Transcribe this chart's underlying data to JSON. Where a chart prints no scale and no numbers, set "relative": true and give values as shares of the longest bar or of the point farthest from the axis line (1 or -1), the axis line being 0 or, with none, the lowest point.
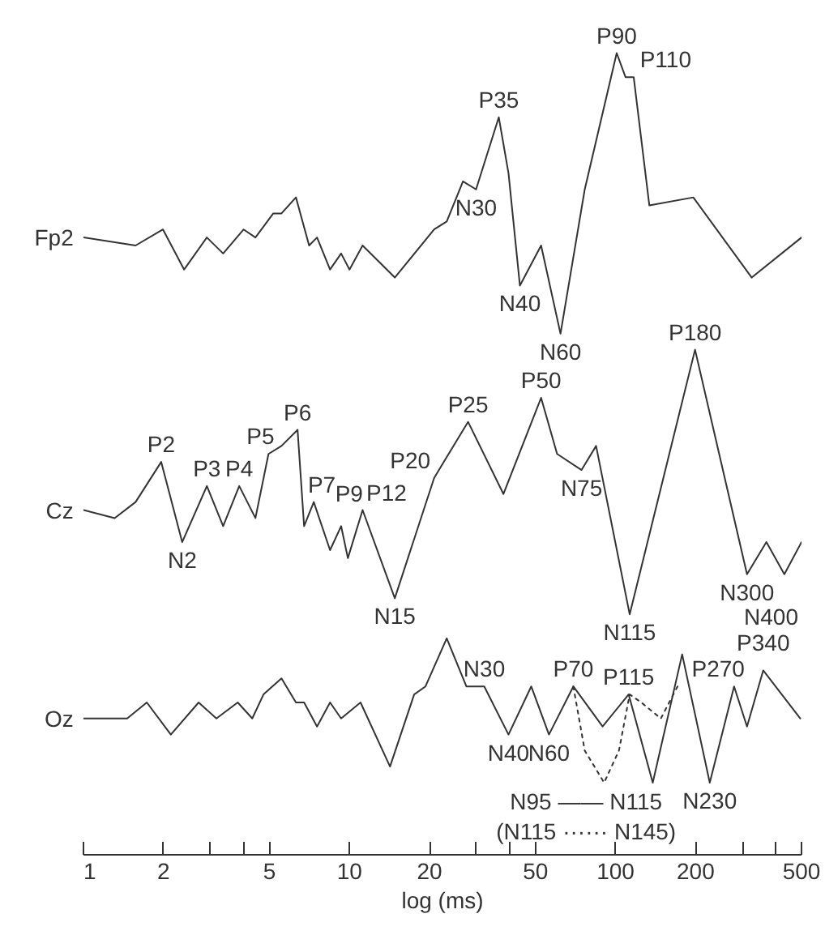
{
  "chart_data": {
    "type": "line",
    "relative": true,
    "log": "x",
    "grid": false,
    "tick_labels": "x",
    "xlabel": "log (ms)",
    "xlim": [
      1,
      500
    ],
    "xticks": [
      1,
      2,
      {
        "value": 3,
        "label": null
      },
      {
        "value": 4,
        "label": null
      },
      5,
      10,
      20,
      {
        "value": 30,
        "label": null
      },
      {
        "value": 40,
        "label": null
      },
      50,
      100,
      200,
      {
        "value": 300,
        "label": null
      },
      {
        "value": 400,
        "label": null
      },
      500
    ],
    "series": [
      {
        "name": "Fp2",
        "color": "#333333",
        "line_style": "solid",
        "x": [
          1,
          1.57,
          1.99,
          2.39,
          2.91,
          3.35,
          4.0,
          4.43,
          5.17,
          5.55,
          6.29,
          7.05,
          7.55,
          8.45,
          9.3,
          10,
          11.2,
          14.8,
          20.8,
          23.2,
          26.7,
          29.9,
          36.4,
          39.6,
          43.7,
          52.5,
          62.1,
          76.6,
          101,
          109,
          117,
          134,
          196,
          325,
          500
        ],
        "values": [
          0.77,
          0.76,
          0.78,
          0.73,
          0.77,
          0.75,
          0.78,
          0.77,
          0.8,
          0.8,
          0.82,
          0.76,
          0.77,
          0.73,
          0.75,
          0.73,
          0.76,
          0.72,
          0.78,
          0.79,
          0.84,
          0.83,
          0.92,
          0.85,
          0.71,
          0.76,
          0.65,
          0.83,
          1.0,
          0.97,
          0.97,
          0.81,
          0.82,
          0.72,
          0.77
        ]
      },
      {
        "name": "Cz",
        "color": "#333333",
        "line_style": "solid",
        "x": [
          1,
          1.31,
          1.57,
          1.96,
          2.35,
          2.91,
          3.35,
          3.85,
          4.43,
          4.96,
          5.55,
          6.38,
          6.75,
          7.34,
          8.45,
          9.3,
          9.86,
          11.2,
          14.8,
          20.8,
          22.6,
          27.9,
          37.9,
          52.5,
          60.3,
          74.5,
          84.5,
          113,
          199,
          312,
          369,
          431,
          500
        ],
        "values": [
          0.43,
          0.42,
          0.44,
          0.49,
          0.39,
          0.46,
          0.41,
          0.46,
          0.42,
          0.5,
          0.51,
          0.53,
          0.41,
          0.44,
          0.38,
          0.41,
          0.37,
          0.43,
          0.32,
          0.47,
          0.49,
          0.54,
          0.45,
          0.57,
          0.5,
          0.48,
          0.51,
          0.3,
          0.63,
          0.35,
          0.39,
          0.35,
          0.39
        ]
      },
      {
        "name": "Oz",
        "color": "#333333",
        "line_style": "solid",
        "x": [
          1,
          1.46,
          1.73,
          2.13,
          2.71,
          3.16,
          3.8,
          4.31,
          4.75,
          5.55,
          6.29,
          6.75,
          7.55,
          8.45,
          9.3,
          11.0,
          14.2,
          17.5,
          19.3,
          23.2,
          27.5,
          32.1,
          39.6,
          48.2,
          56.2,
          69.4,
          89.4,
          112,
          138,
          178,
          226,
          279,
          312,
          359,
          495
        ],
        "values": [
          0.17,
          0.17,
          0.19,
          0.15,
          0.19,
          0.17,
          0.19,
          0.17,
          0.2,
          0.22,
          0.19,
          0.19,
          0.16,
          0.19,
          0.17,
          0.19,
          0.11,
          0.2,
          0.21,
          0.27,
          0.21,
          0.21,
          0.15,
          0.21,
          0.15,
          0.21,
          0.16,
          0.2,
          0.09,
          0.25,
          0.09,
          0.21,
          0.16,
          0.23,
          0.17
        ]
      },
      {
        "color": "#333333",
        "line_style": "dotted",
        "x": [
          69.4,
          76.6,
          90.6,
          103,
          113,
          125,
          148,
          171
        ],
        "values": [
          0.21,
          0.13,
          0.09,
          0.13,
          0.2,
          0.19,
          0.17,
          0.21
        ]
      }
    ],
    "annotations": [
      {
        "text": "P35",
        "x": 36.4,
        "y": 0.92
      },
      {
        "text": "N30",
        "x": 29.9,
        "y": 0.83
      },
      {
        "text": "N40",
        "x": 43.7,
        "y": 0.71
      },
      {
        "text": "N60",
        "x": 62.1,
        "y": 0.65
      },
      {
        "text": "P90",
        "x": 101,
        "y": 1.0
      },
      {
        "text": "P110",
        "x": 117,
        "y": 0.97
      },
      {
        "text": "P2",
        "x": 1.96,
        "y": 0.49
      },
      {
        "text": "N2",
        "x": 2.35,
        "y": 0.39
      },
      {
        "text": "P3",
        "x": 2.91,
        "y": 0.46
      },
      {
        "text": "P4",
        "x": 3.85,
        "y": 0.46
      },
      {
        "text": "P5",
        "x": 4.96,
        "y": 0.5
      },
      {
        "text": "P6",
        "x": 6.38,
        "y": 0.53
      },
      {
        "text": "P7",
        "x": 7.34,
        "y": 0.44
      },
      {
        "text": "P9",
        "x": 9.3,
        "y": 0.41
      },
      {
        "text": "P12",
        "x": 11.2,
        "y": 0.43
      },
      {
        "text": "P20",
        "x": 20.8,
        "y": 0.47
      },
      {
        "text": "P25",
        "x": 27.9,
        "y": 0.54
      },
      {
        "text": "P50",
        "x": 52.5,
        "y": 0.57
      },
      {
        "text": "N75",
        "x": 74.5,
        "y": 0.48
      },
      {
        "text": "N15",
        "x": 14.8,
        "y": 0.32
      },
      {
        "text": "N115",
        "x": 113,
        "y": 0.3
      },
      {
        "text": "P180",
        "x": 199,
        "y": 0.63
      },
      {
        "text": "N300",
        "x": 312,
        "y": 0.35
      },
      {
        "text": "N400",
        "x": 431,
        "y": 0.35
      },
      {
        "text": "N30",
        "x": 32.1,
        "y": 0.21
      },
      {
        "text": "N40",
        "x": 39.6,
        "y": 0.15
      },
      {
        "text": "N60",
        "x": 56.2,
        "y": 0.15
      },
      {
        "text": "P70",
        "x": 69.4,
        "y": 0.21
      },
      {
        "text": "P115",
        "x": 112,
        "y": 0.2
      },
      {
        "text": "P270",
        "x": 279,
        "y": 0.21
      },
      {
        "text": "P340",
        "x": 359,
        "y": 0.23
      },
      {
        "text": "N230",
        "x": 226,
        "y": 0.09
      },
      "N95 —— N115",
      "(N115 ······ N145)"
    ]
  }
}
